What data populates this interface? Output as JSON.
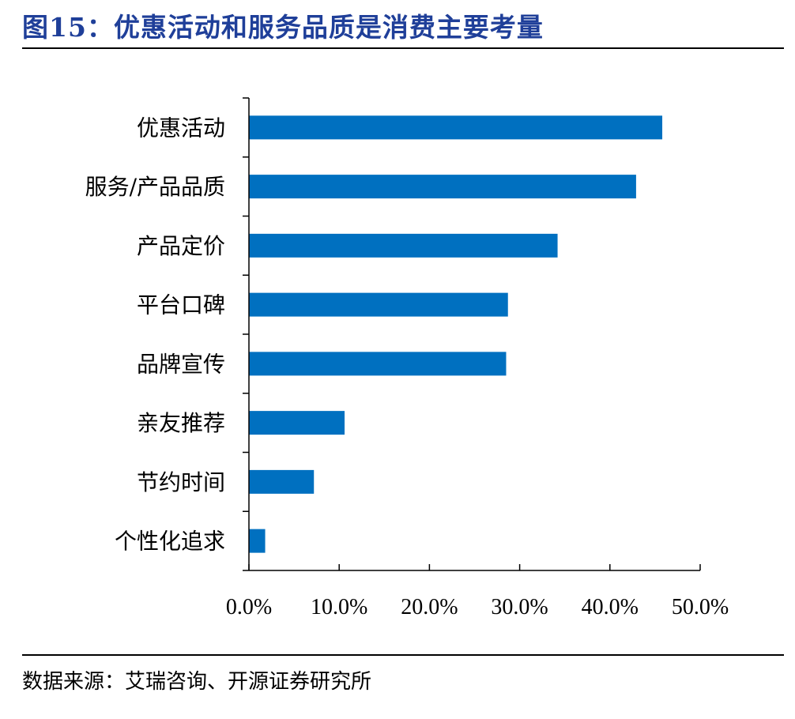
{
  "figure": {
    "title": "图15：优惠活动和服务品质是消费主要考量",
    "source": "数据来源：艾瑞咨询、开源证券研究所"
  },
  "colors": {
    "title": "#1f3f99",
    "bar": "#0070c0",
    "axis": "#000000"
  },
  "chart_data": {
    "type": "bar",
    "orientation": "horizontal",
    "title": "",
    "xlabel": "",
    "ylabel": "",
    "categories": [
      "优惠活动",
      "服务/产品品质",
      "产品定价",
      "平台口碑",
      "品牌宣传",
      "亲友推荐",
      "节约时间",
      "个性化追求"
    ],
    "values": [
      45.8,
      42.9,
      34.2,
      28.7,
      28.5,
      10.6,
      7.2,
      1.8
    ],
    "xlim": [
      0,
      50
    ],
    "xticks": [
      "0.0%",
      "10.0%",
      "20.0%",
      "30.0%",
      "40.0%",
      "50.0%"
    ],
    "unit": "%",
    "grid": false,
    "legend": "none"
  }
}
